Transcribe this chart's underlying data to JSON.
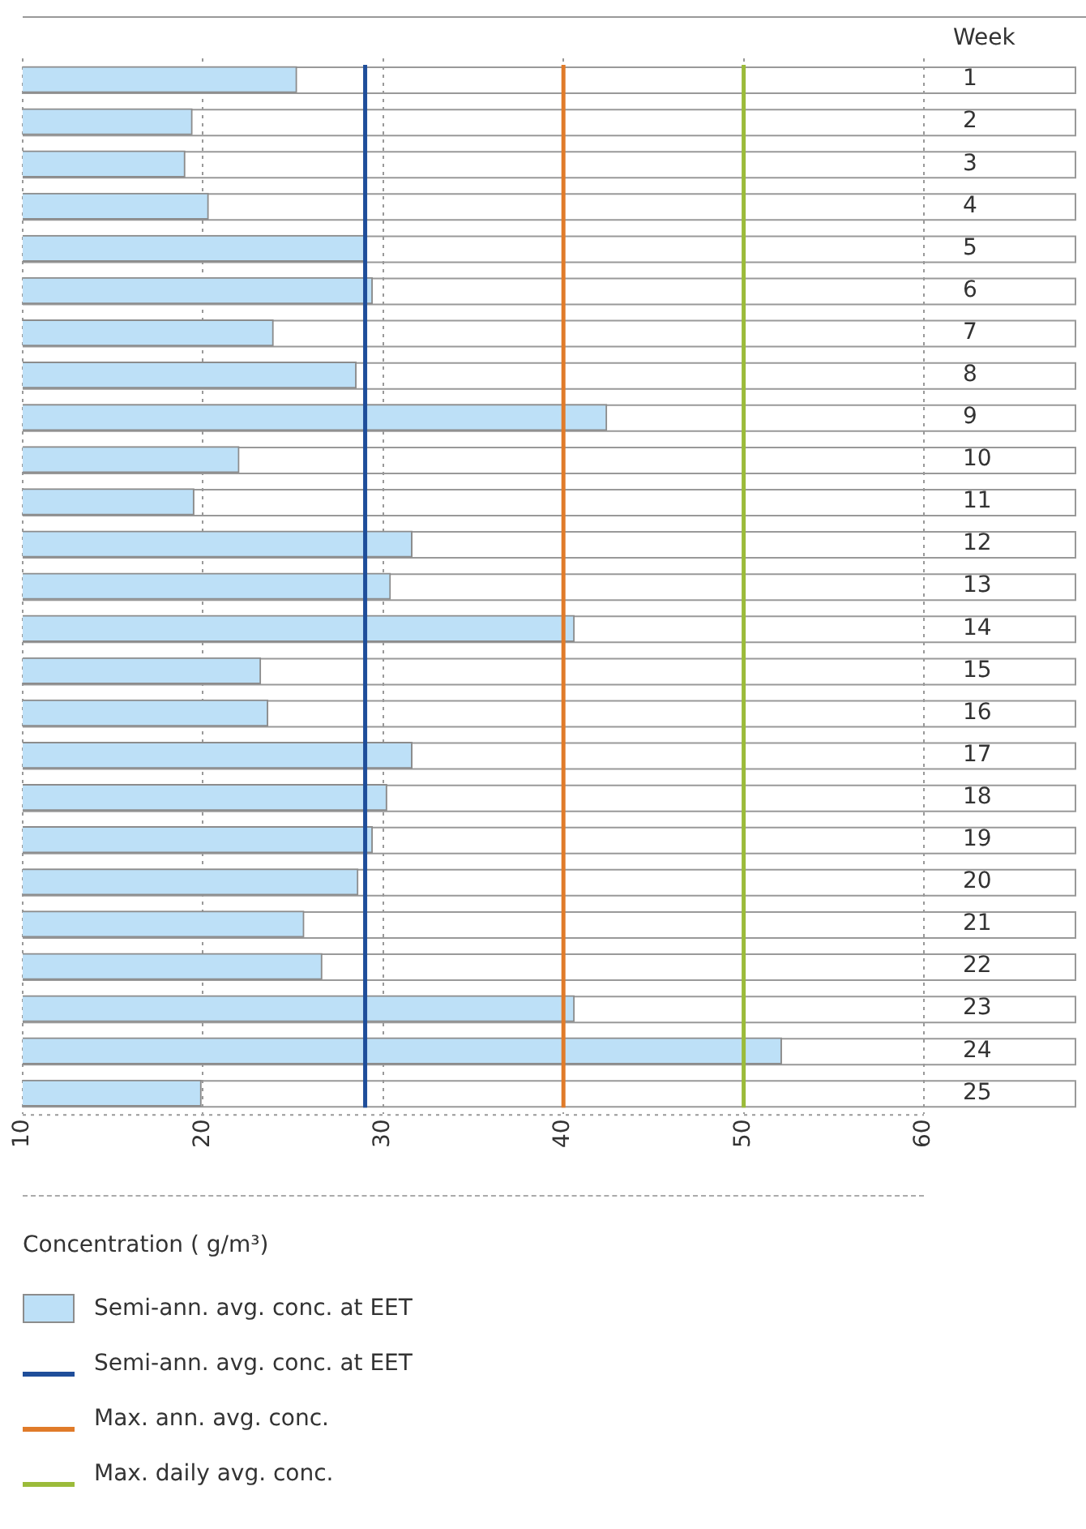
{
  "chart_data": {
    "type": "bar",
    "orientation": "horizontal",
    "xlabel": "Concentration ( g/m³)",
    "ylabel": "Week",
    "categories": [
      "1",
      "2",
      "3",
      "4",
      "5",
      "6",
      "7",
      "8",
      "9",
      "10",
      "11",
      "12",
      "13",
      "14",
      "15",
      "16",
      "17",
      "18",
      "19",
      "20",
      "21",
      "22",
      "23",
      "24",
      "25"
    ],
    "series": [
      {
        "name": "Semi-ann. avg. conc. at EET",
        "color": "#bde0f7",
        "values": [
          25.2,
          19.4,
          19.0,
          20.3,
          29.0,
          29.4,
          23.9,
          28.5,
          42.4,
          22.0,
          19.5,
          31.6,
          30.4,
          40.6,
          23.2,
          23.6,
          31.6,
          30.2,
          29.4,
          28.6,
          25.6,
          26.6,
          40.6,
          52.1,
          19.9
        ]
      }
    ],
    "xlim": [
      10,
      60
    ],
    "xticks": [
      10,
      20,
      30,
      40,
      50,
      60
    ],
    "ref_lines": [
      {
        "axis": "x",
        "value": 29,
        "label": "Semi-ann. avg. conc. at EET",
        "color": "#1f4e9a"
      },
      {
        "axis": "x",
        "value": 40,
        "label": "Max. ann. avg. conc.",
        "color": "#e07b2a"
      },
      {
        "axis": "x",
        "value": 50,
        "label": "Max. daily avg. conc.",
        "color": "#9bbb3a"
      }
    ],
    "grid": "x",
    "legend": "bottom"
  }
}
